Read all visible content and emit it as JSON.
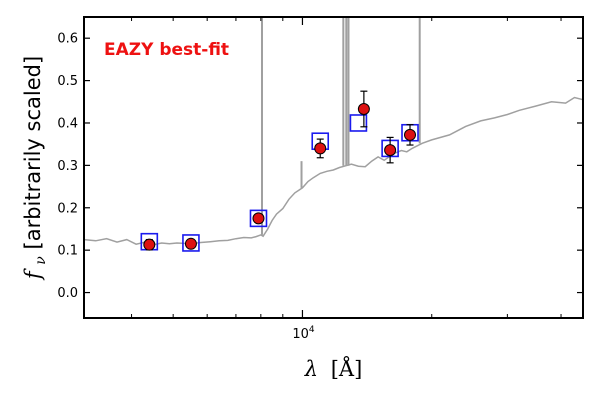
{
  "chart_data": {
    "type": "scatter",
    "xscale": "log",
    "xlim": [
      3100,
      45000
    ],
    "ylim": [
      -0.06,
      0.65
    ],
    "yticks": [
      "0.0",
      "0.1",
      "0.2",
      "0.3",
      "0.4",
      "0.5",
      "0.6"
    ],
    "ytick_values": [
      0.0,
      0.1,
      0.2,
      0.3,
      0.4,
      0.5,
      0.6
    ],
    "xticks_major": [
      {
        "value": 10000,
        "base": "10",
        "exp": "4"
      }
    ],
    "xticks_minor": [
      4000,
      5000,
      6000,
      7000,
      8000,
      9000,
      20000,
      30000,
      40000
    ],
    "xlabel": {
      "main": "λ",
      "unit": "[Å]"
    },
    "ylabel": {
      "sym": "f",
      "sub": "ν",
      "text": " [arbitrarily scaled]"
    },
    "annotation": {
      "text": "EAZY best-fit",
      "color": "#ee1111"
    },
    "colors": {
      "observed": "#dd1111",
      "model": "#a0a0a0",
      "model_phot": "#1a1aee"
    },
    "observed_photometry": {
      "x": [
        4400,
        5500,
        7900,
        11000,
        13900,
        16000,
        17800
      ],
      "y": [
        0.113,
        0.115,
        0.175,
        0.34,
        0.433,
        0.336,
        0.372
      ],
      "yerr": [
        0.012,
        0.008,
        0.006,
        0.022,
        0.042,
        0.03,
        0.024
      ]
    },
    "model_photometry": {
      "x": [
        4400,
        5500,
        7900,
        11000,
        13500,
        16000,
        17800
      ],
      "y": [
        0.12,
        0.117,
        0.175,
        0.357,
        0.4,
        0.34,
        0.377
      ]
    },
    "model_sed": {
      "x": [
        3100,
        3300,
        3500,
        3700,
        3900,
        4100,
        4300,
        4500,
        4700,
        4900,
        5100,
        5300,
        5500,
        5800,
        6100,
        6400,
        6700,
        7000,
        7300,
        7600,
        7800,
        8000,
        8100,
        8300,
        8500,
        8700,
        9000,
        9300,
        9600,
        10000,
        10300,
        10600,
        11000,
        11400,
        11800,
        12200,
        12600,
        13000,
        13500,
        14000,
        14500,
        15000,
        15500,
        16000,
        16500,
        17000,
        17500,
        18000,
        19000,
        20000,
        22000,
        24000,
        26000,
        28000,
        30000,
        32000,
        35000,
        38000,
        41000,
        43000,
        45000
      ],
      "y": [
        0.125,
        0.122,
        0.127,
        0.119,
        0.125,
        0.114,
        0.119,
        0.113,
        0.117,
        0.115,
        0.117,
        0.116,
        0.115,
        0.118,
        0.12,
        0.122,
        0.123,
        0.127,
        0.13,
        0.129,
        0.132,
        0.136,
        0.133,
        0.15,
        0.17,
        0.185,
        0.198,
        0.22,
        0.235,
        0.247,
        0.262,
        0.271,
        0.281,
        0.286,
        0.289,
        0.295,
        0.299,
        0.303,
        0.298,
        0.297,
        0.31,
        0.32,
        0.312,
        0.322,
        0.33,
        0.335,
        0.332,
        0.34,
        0.352,
        0.36,
        0.372,
        0.392,
        0.405,
        0.412,
        0.42,
        0.43,
        0.44,
        0.45,
        0.447,
        0.46,
        0.455
      ]
    },
    "emission_lines": [
      {
        "x": 8050,
        "y": 0.65
      },
      {
        "x": 9950,
        "y": 0.31
      },
      {
        "x": 12450,
        "y": 0.65
      },
      {
        "x": 12650,
        "y": 0.65
      },
      {
        "x": 12800,
        "y": 0.65
      },
      {
        "x": 18750,
        "y": 0.65
      }
    ]
  }
}
